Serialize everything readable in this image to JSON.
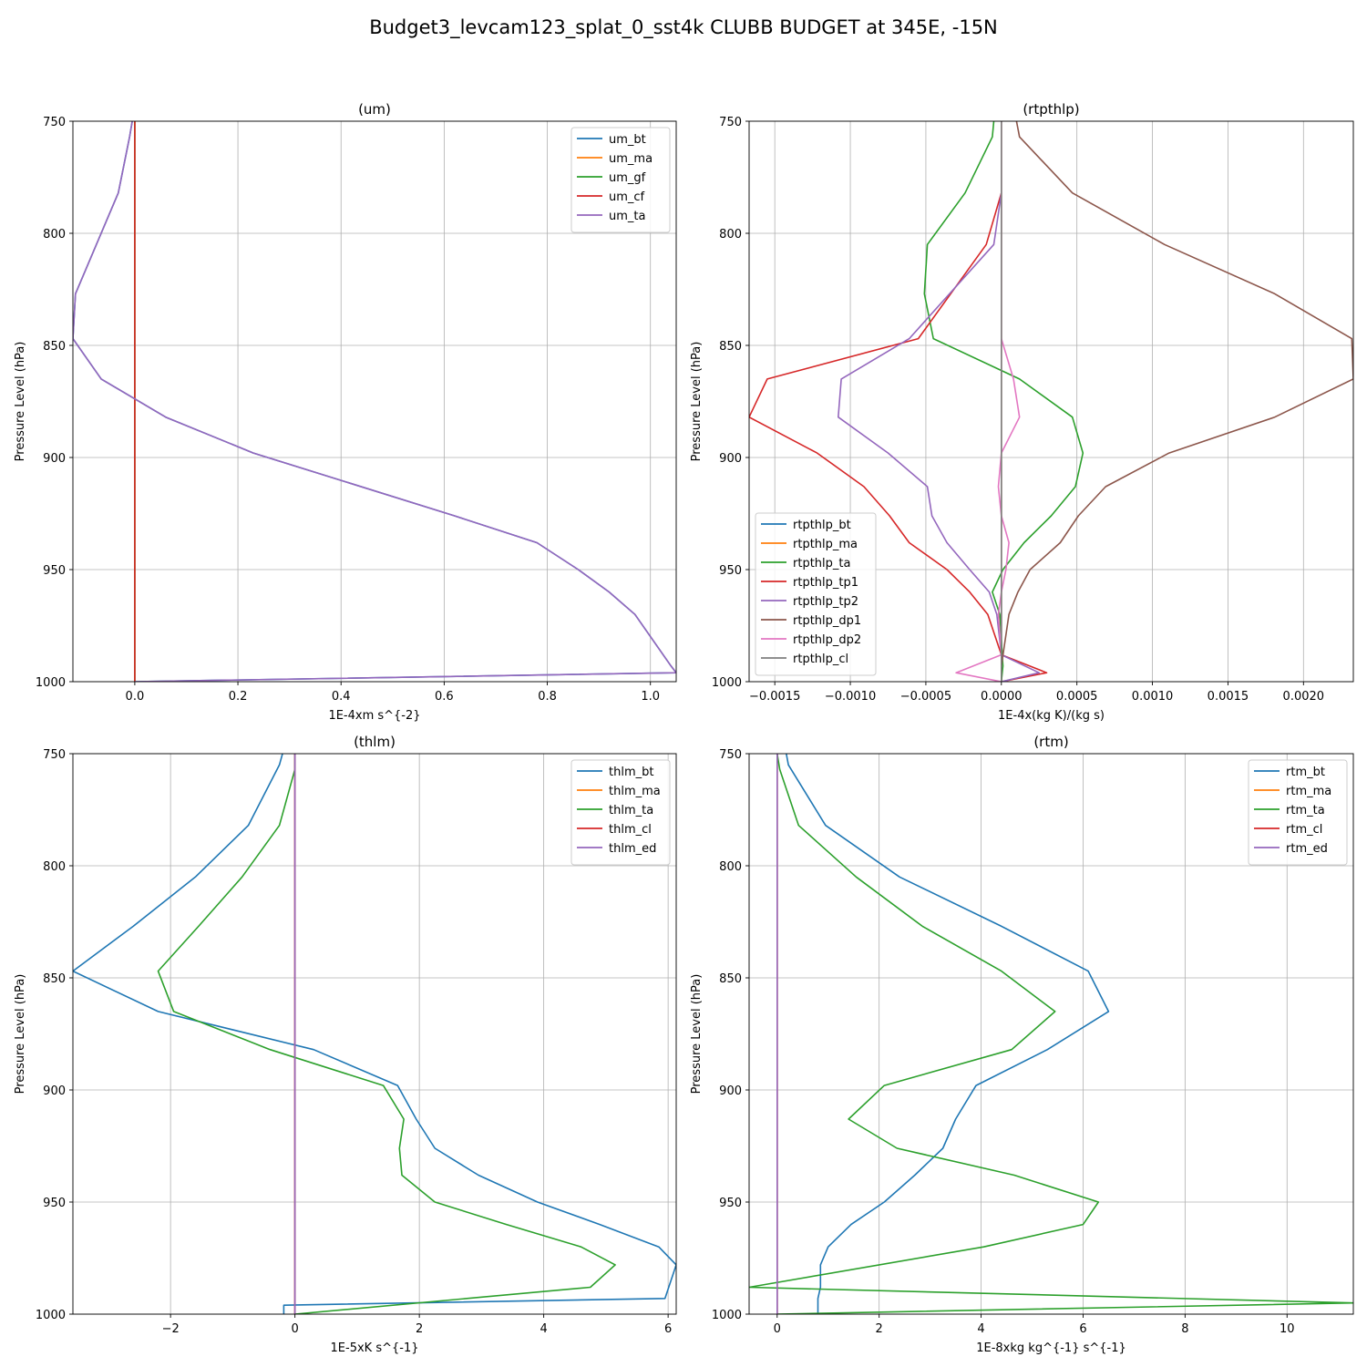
{
  "figure": {
    "title": "Budget3_levcam123_splat_0_sst4k CLUBB BUDGET at 345E, -15N"
  },
  "chart_data": [
    {
      "type": "line",
      "title": "(um)",
      "xlabel": "1E-4xm s^{-2}",
      "ylabel": "Pressure Level (hPa)",
      "xlim": [
        -0.12,
        1.05
      ],
      "ylim": [
        1000,
        750
      ],
      "xticks": [
        0.0,
        0.2,
        0.4,
        0.6,
        0.8,
        1.0
      ],
      "xtick_labels": [
        "0.0",
        "0.2",
        "0.4",
        "0.6",
        "0.8",
        "1.0"
      ],
      "yticks": [
        750,
        800,
        850,
        900,
        950,
        1000
      ],
      "ytick_labels": [
        "750",
        "800",
        "850",
        "900",
        "950",
        "1000"
      ],
      "grid": true,
      "legend_position": "upper-right",
      "series": [
        {
          "name": "um_bt",
          "color": "#1f77b4",
          "points": [
            [
              -0.005,
              750
            ],
            [
              -0.01,
              757
            ],
            [
              -0.032,
              782
            ],
            [
              -0.115,
              827
            ],
            [
              -0.12,
              847
            ],
            [
              -0.065,
              865
            ],
            [
              0.06,
              882
            ],
            [
              0.23,
              898
            ],
            [
              0.62,
              926
            ],
            [
              0.78,
              938
            ],
            [
              0.86,
              950
            ],
            [
              0.92,
              960
            ],
            [
              0.97,
              970
            ],
            [
              1.04,
              993
            ],
            [
              1.05,
              996
            ],
            [
              0.0,
              1000
            ]
          ]
        },
        {
          "name": "um_ma",
          "color": "#ff7f0e",
          "points": [
            [
              0.0,
              750
            ],
            [
              0.0,
              1000
            ]
          ]
        },
        {
          "name": "um_gf",
          "color": "#2ca02c",
          "points": [
            [
              0.0,
              750
            ],
            [
              0.0,
              1000
            ]
          ]
        },
        {
          "name": "um_cf",
          "color": "#d62728",
          "points": [
            [
              0.0,
              750
            ],
            [
              0.0,
              1000
            ]
          ]
        },
        {
          "name": "um_ta",
          "color": "#9467bd",
          "points": [
            [
              -0.005,
              750
            ],
            [
              -0.01,
              757
            ],
            [
              -0.032,
              782
            ],
            [
              -0.115,
              827
            ],
            [
              -0.12,
              847
            ],
            [
              -0.065,
              865
            ],
            [
              0.06,
              882
            ],
            [
              0.23,
              898
            ],
            [
              0.62,
              926
            ],
            [
              0.78,
              938
            ],
            [
              0.86,
              950
            ],
            [
              0.92,
              960
            ],
            [
              0.97,
              970
            ],
            [
              1.04,
              993
            ],
            [
              1.05,
              996
            ],
            [
              0.0,
              1000
            ]
          ]
        }
      ]
    },
    {
      "type": "line",
      "title": "(rtpthlp)",
      "xlabel": "1E-4x(kg K)/(kg s)",
      "ylabel": "Pressure Level (hPa)",
      "xlim": [
        -0.00167,
        0.00233
      ],
      "ylim": [
        1000,
        750
      ],
      "xticks": [
        -0.0015,
        -0.001,
        -0.0005,
        0.0,
        0.0005,
        0.001,
        0.0015,
        0.002
      ],
      "xtick_labels": [
        "−0.0015",
        "−0.0010",
        "−0.0005",
        "0.0000",
        "0.0005",
        "0.0010",
        "0.0015",
        "0.0020"
      ],
      "yticks": [
        750,
        800,
        850,
        900,
        950,
        1000
      ],
      "ytick_labels": [
        "750",
        "800",
        "850",
        "900",
        "950",
        "1000"
      ],
      "grid": true,
      "legend_position": "lower-left",
      "series": [
        {
          "name": "rtpthlp_bt",
          "color": "#1f77b4",
          "points": [
            [
              0.0,
              750
            ],
            [
              0.0,
              1000
            ]
          ]
        },
        {
          "name": "rtpthlp_ma",
          "color": "#ff7f0e",
          "points": [
            [
              0.0,
              750
            ],
            [
              0.0,
              1000
            ]
          ]
        },
        {
          "name": "rtpthlp_ta",
          "color": "#2ca02c",
          "points": [
            [
              -5e-05,
              750
            ],
            [
              -6e-05,
              757
            ],
            [
              -0.00024,
              782
            ],
            [
              -0.00049,
              805
            ],
            [
              -0.00051,
              827
            ],
            [
              -0.00045,
              847
            ],
            [
              0.00012,
              865
            ],
            [
              0.00047,
              882
            ],
            [
              0.00054,
              898
            ],
            [
              0.00049,
              913
            ],
            [
              0.00033,
              926
            ],
            [
              0.00015,
              938
            ],
            [
              1e-05,
              950
            ],
            [
              -6e-05,
              960
            ],
            [
              -1e-05,
              970
            ],
            [
              1e-05,
              993
            ],
            [
              0.0,
              1000
            ]
          ]
        },
        {
          "name": "rtpthlp_tp1",
          "color": "#d62728",
          "points": [
            [
              0.0,
              782
            ],
            [
              -0.0001,
              805
            ],
            [
              -0.00055,
              847
            ],
            [
              -0.00155,
              865
            ],
            [
              -0.00167,
              882
            ],
            [
              -0.00122,
              898
            ],
            [
              -0.00091,
              913
            ],
            [
              -0.00074,
              926
            ],
            [
              -0.00061,
              938
            ],
            [
              -0.00036,
              950
            ],
            [
              -0.00021,
              960
            ],
            [
              -9e-05,
              970
            ],
            [
              0.0,
              988
            ],
            [
              0.0003,
              996
            ],
            [
              0.0,
              1000
            ]
          ]
        },
        {
          "name": "rtpthlp_tp2",
          "color": "#9467bd",
          "points": [
            [
              0.0,
              782
            ],
            [
              -5e-05,
              805
            ],
            [
              -0.00061,
              847
            ],
            [
              -0.00106,
              865
            ],
            [
              -0.00108,
              882
            ],
            [
              -0.00075,
              898
            ],
            [
              -0.00049,
              913
            ],
            [
              -0.00046,
              926
            ],
            [
              -0.00036,
              938
            ],
            [
              -0.00021,
              950
            ],
            [
              -8e-05,
              960
            ],
            [
              -3e-05,
              970
            ],
            [
              0.0,
              988
            ],
            [
              0.00025,
              996
            ],
            [
              0.0,
              1000
            ]
          ]
        },
        {
          "name": "rtpthlp_dp1",
          "color": "#8c564b",
          "points": [
            [
              0.0001,
              750
            ],
            [
              0.00012,
              757
            ],
            [
              0.00047,
              782
            ],
            [
              0.00108,
              805
            ],
            [
              0.00181,
              827
            ],
            [
              0.00232,
              847
            ],
            [
              0.00233,
              865
            ],
            [
              0.00181,
              882
            ],
            [
              0.00111,
              898
            ],
            [
              0.00069,
              913
            ],
            [
              0.00051,
              926
            ],
            [
              0.00039,
              938
            ],
            [
              0.00019,
              950
            ],
            [
              0.00011,
              960
            ],
            [
              5e-05,
              970
            ],
            [
              0.0,
              993
            ],
            [
              0.0,
              1000
            ]
          ]
        },
        {
          "name": "rtpthlp_dp2",
          "color": "#e377c2",
          "points": [
            [
              0.0,
              750
            ],
            [
              0.0,
              847
            ],
            [
              8e-05,
              865
            ],
            [
              0.00012,
              882
            ],
            [
              0.0,
              898
            ],
            [
              -2e-05,
              913
            ],
            [
              0.0,
              926
            ],
            [
              5e-05,
              938
            ],
            [
              3e-05,
              950
            ],
            [
              0.0,
              960
            ],
            [
              -2e-05,
              970
            ],
            [
              0.0,
              988
            ],
            [
              -0.0003,
              996
            ],
            [
              0.0,
              1000
            ]
          ]
        },
        {
          "name": "rtpthlp_cl",
          "color": "#7f7f7f",
          "points": [
            [
              0.0,
              750
            ],
            [
              0.0,
              1000
            ]
          ]
        }
      ]
    },
    {
      "type": "line",
      "title": "(thlm)",
      "xlabel": "1E-5xK s^{-1}",
      "ylabel": "Pressure Level (hPa)",
      "xlim": [
        -3.57,
        6.13
      ],
      "ylim": [
        1000,
        750
      ],
      "xticks": [
        -2,
        0,
        2,
        4,
        6
      ],
      "xtick_labels": [
        "−2",
        "0",
        "2",
        "4",
        "6"
      ],
      "yticks": [
        750,
        800,
        850,
        900,
        950,
        1000
      ],
      "ytick_labels": [
        "750",
        "800",
        "850",
        "900",
        "950",
        "1000"
      ],
      "grid": true,
      "legend_position": "upper-right",
      "series": [
        {
          "name": "thlm_bt",
          "color": "#1f77b4",
          "points": [
            [
              -0.2,
              750
            ],
            [
              -0.25,
              755
            ],
            [
              -0.75,
              782
            ],
            [
              -1.6,
              805
            ],
            [
              -2.6,
              827
            ],
            [
              -3.57,
              847
            ],
            [
              -2.2,
              865
            ],
            [
              0.3,
              882
            ],
            [
              1.65,
              898
            ],
            [
              1.95,
              913
            ],
            [
              2.25,
              926
            ],
            [
              2.95,
              938
            ],
            [
              3.9,
              950
            ],
            [
              4.9,
              960
            ],
            [
              5.85,
              970
            ],
            [
              6.13,
              978
            ],
            [
              5.95,
              993
            ],
            [
              -0.18,
              996
            ],
            [
              -0.18,
              1000
            ]
          ]
        },
        {
          "name": "thlm_ma",
          "color": "#ff7f0e",
          "points": [
            [
              0.0,
              750
            ],
            [
              0.0,
              1000
            ]
          ]
        },
        {
          "name": "thlm_ta",
          "color": "#2ca02c",
          "points": [
            [
              0.0,
              750
            ],
            [
              0.0,
              757
            ],
            [
              -0.25,
              782
            ],
            [
              -0.85,
              805
            ],
            [
              -1.55,
              827
            ],
            [
              -2.2,
              847
            ],
            [
              -1.95,
              865
            ],
            [
              -0.4,
              882
            ],
            [
              1.42,
              898
            ],
            [
              1.75,
              913
            ],
            [
              1.68,
              926
            ],
            [
              1.72,
              938
            ],
            [
              2.25,
              950
            ],
            [
              3.4,
              960
            ],
            [
              4.6,
              970
            ],
            [
              5.15,
              978
            ],
            [
              4.75,
              988
            ],
            [
              0.0,
              1000
            ]
          ]
        },
        {
          "name": "thlm_cl",
          "color": "#d62728",
          "points": [
            [
              0.0,
              750
            ],
            [
              0.0,
              1000
            ]
          ]
        },
        {
          "name": "thlm_ed",
          "color": "#9467bd",
          "points": [
            [
              0.0,
              750
            ],
            [
              0.0,
              1000
            ]
          ]
        }
      ]
    },
    {
      "type": "line",
      "title": "(rtm)",
      "xlabel": "1E-8xkg kg^{-1} s^{-1}",
      "ylabel": "Pressure Level (hPa)",
      "xlim": [
        -0.55,
        11.3
      ],
      "ylim": [
        1000,
        750
      ],
      "xticks": [
        0,
        2,
        4,
        6,
        8,
        10
      ],
      "xtick_labels": [
        "0",
        "2",
        "4",
        "6",
        "8",
        "10"
      ],
      "yticks": [
        750,
        800,
        850,
        900,
        950,
        1000
      ],
      "ytick_labels": [
        "750",
        "800",
        "850",
        "900",
        "950",
        "1000"
      ],
      "grid": true,
      "legend_position": "upper-right",
      "series": [
        {
          "name": "rtm_bt",
          "color": "#1f77b4",
          "points": [
            [
              0.18,
              750
            ],
            [
              0.22,
              755
            ],
            [
              0.95,
              782
            ],
            [
              2.4,
              805
            ],
            [
              4.4,
              827
            ],
            [
              6.1,
              847
            ],
            [
              6.5,
              865
            ],
            [
              5.3,
              882
            ],
            [
              3.9,
              898
            ],
            [
              3.5,
              913
            ],
            [
              3.25,
              926
            ],
            [
              2.7,
              938
            ],
            [
              2.1,
              950
            ],
            [
              1.45,
              960
            ],
            [
              1.0,
              970
            ],
            [
              0.85,
              978
            ],
            [
              0.85,
              988
            ],
            [
              0.8,
              993
            ],
            [
              0.8,
              1000
            ]
          ]
        },
        {
          "name": "rtm_ma",
          "color": "#ff7f0e",
          "points": [
            [
              0.0,
              750
            ],
            [
              0.0,
              1000
            ]
          ]
        },
        {
          "name": "rtm_ta",
          "color": "#2ca02c",
          "points": [
            [
              0.0,
              750
            ],
            [
              0.05,
              757
            ],
            [
              0.42,
              782
            ],
            [
              1.55,
              805
            ],
            [
              2.85,
              827
            ],
            [
              4.4,
              847
            ],
            [
              5.45,
              865
            ],
            [
              4.6,
              882
            ],
            [
              2.1,
              898
            ],
            [
              1.4,
              913
            ],
            [
              2.35,
              926
            ],
            [
              4.65,
              938
            ],
            [
              6.3,
              950
            ],
            [
              6.0,
              960
            ],
            [
              4.05,
              970
            ],
            [
              -0.55,
              988
            ],
            [
              11.3,
              995
            ],
            [
              0.0,
              1000
            ]
          ]
        },
        {
          "name": "rtm_cl",
          "color": "#d62728",
          "points": [
            [
              0.0,
              750
            ],
            [
              0.0,
              1000
            ]
          ]
        },
        {
          "name": "rtm_ed",
          "color": "#9467bd",
          "points": [
            [
              0.0,
              750
            ],
            [
              0.0,
              1000
            ]
          ]
        }
      ]
    }
  ]
}
